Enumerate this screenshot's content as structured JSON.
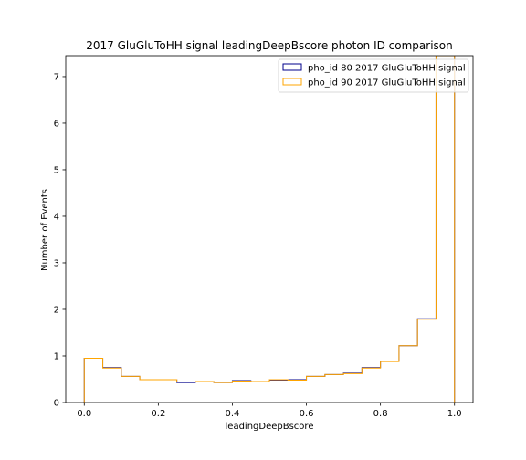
{
  "chart_data": {
    "type": "step-histogram",
    "title": "2017 GluGluToHH signal leadingDeepBscore photon ID comparison",
    "xlabel": "leadingDeepBscore",
    "ylabel": "Number of Events",
    "xlim": [
      -0.05,
      1.05
    ],
    "ylim": [
      0,
      7.45
    ],
    "xticks": [
      0.0,
      0.2,
      0.4,
      0.6,
      0.8,
      1.0
    ],
    "xtick_labels": [
      "0.0",
      "0.2",
      "0.4",
      "0.6",
      "0.8",
      "1.0"
    ],
    "yticks": [
      0,
      1,
      2,
      3,
      4,
      5,
      6,
      7
    ],
    "ytick_labels": [
      "0",
      "1",
      "2",
      "3",
      "4",
      "5",
      "6",
      "7"
    ],
    "bin_edges": [
      0.0,
      0.05,
      0.1,
      0.15,
      0.2,
      0.25,
      0.3,
      0.35,
      0.4,
      0.45,
      0.5,
      0.55,
      0.6,
      0.65,
      0.7,
      0.75,
      0.8,
      0.85,
      0.9,
      0.95,
      1.0
    ],
    "legend_position": "top-right",
    "series": [
      {
        "name": "pho_id 80 2017 GluGluToHH signal",
        "color": "#00008b",
        "values": [
          0.95,
          0.75,
          0.56,
          0.49,
          0.49,
          0.43,
          0.45,
          0.43,
          0.47,
          0.45,
          0.48,
          0.49,
          0.56,
          0.6,
          0.63,
          0.75,
          0.89,
          1.22,
          1.8,
          7.45
        ]
      },
      {
        "name": "pho_id 90 2017 GluGluToHH signal",
        "color": "#ffa500",
        "values": [
          0.95,
          0.74,
          0.56,
          0.49,
          0.49,
          0.44,
          0.45,
          0.43,
          0.46,
          0.45,
          0.49,
          0.48,
          0.56,
          0.6,
          0.62,
          0.74,
          0.88,
          1.22,
          1.79,
          7.45
        ]
      }
    ]
  }
}
